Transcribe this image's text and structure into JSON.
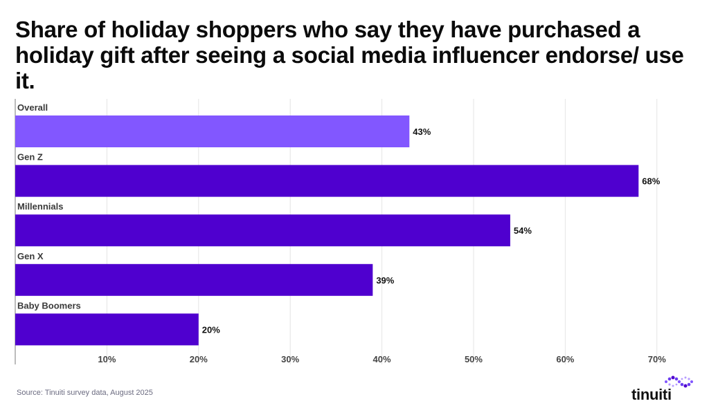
{
  "title": "Share of holiday shoppers who say they have purchased a holiday gift after seeing a social media influencer endorse/ use it.",
  "source": "Source: Tinuiti survey data, August 2025",
  "brand": {
    "name": "tinuiti",
    "icon": "tinuiti-logo-icon"
  },
  "colors": {
    "overall": "#8257ff",
    "segment": "#4f00cf",
    "grid": "#e4e4e4",
    "axis": "#7a7a7a"
  },
  "chart_data": {
    "type": "bar",
    "orientation": "horizontal",
    "categories": [
      "Overall",
      "Gen Z",
      "Millennials",
      "Gen X",
      "Baby Boomers"
    ],
    "values": [
      43,
      68,
      54,
      39,
      20
    ],
    "value_labels": [
      "43%",
      "68%",
      "54%",
      "39%",
      "20%"
    ],
    "x_ticks": [
      10,
      20,
      30,
      40,
      50,
      60,
      70
    ],
    "x_tick_labels": [
      "10%",
      "20%",
      "30%",
      "40%",
      "50%",
      "60%",
      "70%"
    ],
    "xlim": [
      0,
      71
    ],
    "grid": true,
    "title": "Share of holiday shoppers who say they have purchased a holiday gift after seeing a social media influencer endorse/ use it.",
    "xlabel": "",
    "ylabel": ""
  }
}
